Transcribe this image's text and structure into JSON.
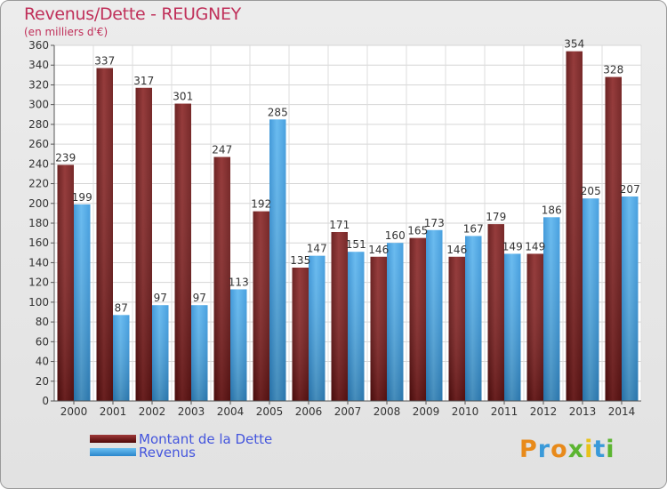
{
  "chart_data": {
    "type": "bar",
    "title": "Revenus/Dette - REUGNEY",
    "subtitle": "(en milliers d'€)",
    "categories": [
      "2000",
      "2001",
      "2002",
      "2003",
      "2004",
      "2005",
      "2006",
      "2007",
      "2008",
      "2009",
      "2010",
      "2011",
      "2012",
      "2013",
      "2014"
    ],
    "series": [
      {
        "name": "Montant de la Dette",
        "values": [
          239,
          337,
          317,
          301,
          247,
          192,
          135,
          171,
          146,
          165,
          146,
          179,
          149,
          354,
          328
        ],
        "color": "#7a1c1c"
      },
      {
        "name": "Revenus",
        "values": [
          199,
          87,
          97,
          97,
          113,
          285,
          147,
          151,
          160,
          173,
          167,
          149,
          186,
          205,
          207
        ],
        "color": "#3a9ee0"
      }
    ],
    "ylim": [
      0,
      360
    ],
    "yticks": [
      0,
      20,
      40,
      60,
      80,
      100,
      120,
      140,
      160,
      180,
      200,
      220,
      240,
      260,
      280,
      300,
      320,
      340,
      360
    ],
    "grid": true,
    "legend_position": "bottom-left"
  },
  "branding": {
    "logo_text": "Proxiti"
  }
}
